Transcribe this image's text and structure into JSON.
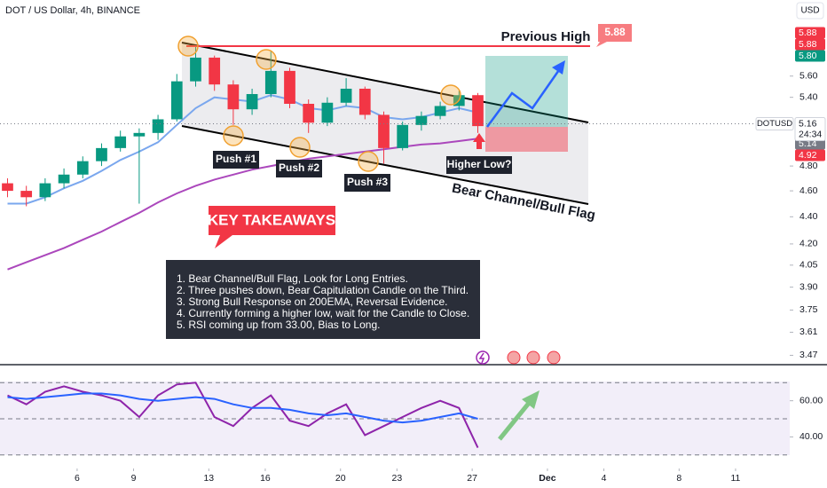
{
  "header": {
    "title": "DOT / US Dollar, 4h, BINANCE",
    "currency": "USD"
  },
  "chart_data": [
    {
      "type": "candlestick",
      "x": [
        2.3,
        3.3,
        4.3,
        5.3,
        6.3,
        7.3,
        8.3,
        9.3,
        10.3,
        11.3,
        12.3,
        13.3,
        14.3,
        15.3,
        16.3,
        17.3,
        18.3,
        19.3,
        20.3,
        21.3,
        22.3,
        23.3,
        24.3,
        25.3,
        26.3,
        27.3
      ],
      "open": [
        4.66,
        4.6,
        4.55,
        4.66,
        4.73,
        4.84,
        4.95,
        5.05,
        5.08,
        5.2,
        5.55,
        5.78,
        5.52,
        5.29,
        5.43,
        5.65,
        5.34,
        5.17,
        5.35,
        5.48,
        5.24,
        4.95,
        5.15,
        5.23,
        5.32,
        5.42
      ],
      "high": [
        4.7,
        4.64,
        4.7,
        4.78,
        4.88,
        4.99,
        5.1,
        5.12,
        5.24,
        5.62,
        5.9,
        5.8,
        5.56,
        5.48,
        5.85,
        5.68,
        5.38,
        5.4,
        5.58,
        5.5,
        5.27,
        5.18,
        5.27,
        5.36,
        5.46,
        5.44
      ],
      "low": [
        4.55,
        4.48,
        4.52,
        4.62,
        4.7,
        4.8,
        4.92,
        4.5,
        5.02,
        5.18,
        5.5,
        5.46,
        5.15,
        5.24,
        5.4,
        5.3,
        5.08,
        5.14,
        5.32,
        5.2,
        4.82,
        4.93,
        5.1,
        5.2,
        5.28,
        5.08
      ],
      "close": [
        4.6,
        4.55,
        4.66,
        4.73,
        4.84,
        4.95,
        5.05,
        5.08,
        5.2,
        5.55,
        5.78,
        5.52,
        5.29,
        5.43,
        5.65,
        5.34,
        5.17,
        5.35,
        5.48,
        5.24,
        4.95,
        5.15,
        5.23,
        5.32,
        5.42,
        5.14
      ],
      "up_color": "#089981",
      "down_color": "#f23645",
      "series": [
        {
          "color": "#7aa7ee",
          "values": [
            4.5,
            4.5,
            4.55,
            4.62,
            4.68,
            4.76,
            4.85,
            4.92,
            5.0,
            5.15,
            5.3,
            5.4,
            5.38,
            5.36,
            5.42,
            5.38,
            5.3,
            5.28,
            5.32,
            5.3,
            5.22,
            5.2,
            5.22,
            5.26,
            5.3,
            5.26
          ]
        },
        {
          "color": "#ab47bc",
          "values": [
            4.02,
            4.07,
            4.12,
            4.17,
            4.23,
            4.29,
            4.36,
            4.43,
            4.51,
            4.58,
            4.64,
            4.69,
            4.73,
            4.77,
            4.8,
            4.83,
            4.86,
            4.88,
            4.9,
            4.92,
            4.94,
            4.96,
            4.98,
            4.99,
            5.01,
            5.03
          ]
        }
      ],
      "log_scale": true,
      "xlim": [
        1.9,
        43.88
      ],
      "xticks": [
        6,
        9,
        13,
        16,
        20,
        23,
        27,
        {
          "value": 31,
          "label": "Dec"
        },
        {
          "value": 34,
          "label": "4"
        },
        {
          "value": 38,
          "label": "8"
        },
        {
          "value": 41,
          "label": "11"
        }
      ],
      "ylim": [
        3.42,
        6.38
      ],
      "yticks": [
        {
          "value": 5.6,
          "label": "5.60"
        },
        {
          "value": 5.4,
          "label": "5.40"
        },
        {
          "value": 4.8,
          "label": "4.80"
        },
        {
          "value": 4.6,
          "label": "4.60"
        },
        {
          "value": 4.4,
          "label": "4.40"
        },
        {
          "value": 4.2,
          "label": "4.20"
        },
        {
          "value": 4.05,
          "label": "4.05"
        },
        {
          "value": 3.9,
          "label": "3.90"
        },
        {
          "value": 3.75,
          "label": "3.75"
        },
        {
          "value": 3.61,
          "label": "3.61"
        },
        {
          "value": 3.47,
          "label": "3.47"
        }
      ],
      "price_labels": [
        {
          "value": 5.88,
          "label": "5.88",
          "color": "#f23645"
        },
        {
          "value": 5.88,
          "label": "5.88",
          "color": "#f23645"
        },
        {
          "value": 5.8,
          "label": "5.80",
          "color": "#089981"
        },
        {
          "value": 5.14,
          "label": "5.14",
          "color": "#787b86"
        },
        {
          "value": 4.92,
          "label": "4.92",
          "color": "#f23645"
        }
      ],
      "last_price": {
        "symbol": "DOTUSD",
        "value": 5.16,
        "label": "5.16",
        "countdown": "24:34"
      },
      "annotations": {
        "previous_high": "Previous High",
        "previous_high_value": 5.88,
        "push1": "Push #1",
        "push2": "Push #2",
        "push3": "Push #3",
        "higher_low": "Higher Low?",
        "channel": "Bear Channel/Bull Flag",
        "key_title": "KEY TAKEAWAYS",
        "takeaways": [
          "1. Bear Channel/Bull Flag, Look for Long Entries.",
          "2. Three pushes down, Bear Capitulation Candle on the Third.",
          "3. Strong Bull Response on 200EMA, Reversal Evidence.",
          "4. Currently forming a higher low, wait for the Candle to Close.",
          "5. RSI coming up from 33.00, Bias to Long."
        ]
      }
    },
    {
      "type": "line",
      "series": [
        {
          "color": "#8e24aa",
          "values": [
            63,
            58,
            65,
            68,
            65,
            63,
            60,
            51,
            63,
            69,
            70,
            51,
            46,
            56,
            63,
            49,
            46,
            53,
            58,
            41,
            46,
            51,
            56,
            60,
            56,
            34
          ]
        },
        {
          "color": "#2962ff",
          "values": [
            62,
            61,
            62,
            63,
            64,
            64,
            63,
            61,
            60,
            61,
            62,
            61,
            58,
            56,
            56,
            55,
            53,
            52,
            53,
            51,
            49,
            48,
            49,
            51,
            53,
            50
          ]
        }
      ],
      "bands": [
        70,
        50,
        30
      ],
      "ylim": [
        24,
        78
      ],
      "yticks": [
        {
          "value": 60,
          "label": "60.00"
        },
        {
          "value": 40,
          "label": "40.00"
        }
      ]
    }
  ]
}
